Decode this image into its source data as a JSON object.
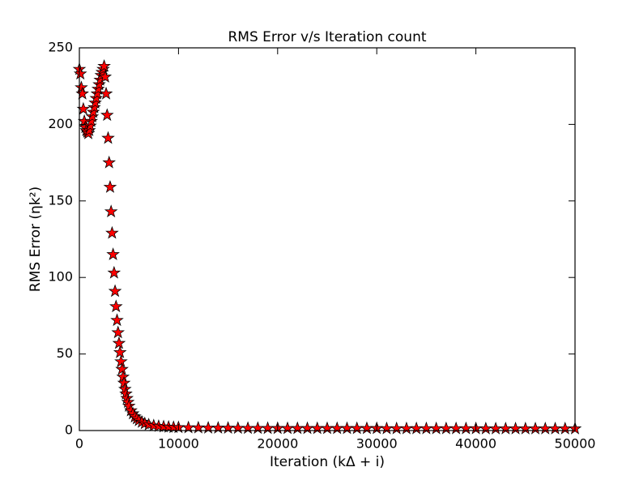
{
  "chart_data": {
    "type": "scatter",
    "title": "RMS Error v/s Iteration count",
    "x_label": "Iteration (kΔ + i)",
    "y_label": "RMS Error (ηk²)",
    "marker": "star",
    "color": "#ff0000",
    "edge_color": "#000000",
    "x": [
      0,
      100,
      200,
      300,
      400,
      500,
      600,
      700,
      800,
      900,
      1000,
      1100,
      1200,
      1300,
      1400,
      1500,
      1600,
      1700,
      1800,
      1900,
      2000,
      2100,
      2200,
      2300,
      2400,
      2500,
      2600,
      2700,
      2800,
      2900,
      3000,
      3100,
      3200,
      3300,
      3400,
      3500,
      3600,
      3700,
      3800,
      3900,
      4000,
      4100,
      4200,
      4300,
      4400,
      4500,
      4600,
      4700,
      4800,
      4900,
      5000,
      5200,
      5400,
      5600,
      5800,
      6000,
      6300,
      6600,
      7000,
      7500,
      8000,
      8500,
      9000,
      9500,
      10000,
      11000,
      12000,
      13000,
      14000,
      15000,
      16000,
      17000,
      18000,
      19000,
      20000,
      21000,
      22000,
      23000,
      24000,
      25000,
      26000,
      27000,
      28000,
      29000,
      30000,
      31000,
      32000,
      33000,
      34000,
      35000,
      36000,
      37000,
      38000,
      39000,
      40000,
      41000,
      42000,
      43000,
      44000,
      45000,
      46000,
      47000,
      48000,
      49000,
      50000
    ],
    "values": [
      236,
      233,
      224,
      220,
      210,
      202,
      198,
      196,
      195,
      194,
      196,
      199,
      202,
      205,
      208,
      211,
      214,
      217,
      220,
      223,
      226,
      229,
      232,
      234,
      236,
      238,
      231,
      220,
      206,
      191,
      175,
      159,
      143,
      129,
      115,
      103,
      91,
      81,
      72,
      64,
      57,
      51,
      45,
      40,
      35,
      31,
      27,
      24,
      21,
      18.5,
      16,
      13,
      11,
      9,
      7.8,
      6.6,
      5.5,
      4.6,
      3.8,
      3.2,
      2.8,
      2.5,
      2.3,
      2.1,
      2.0,
      1.9,
      1.8,
      1.7,
      1.65,
      1.6,
      1.55,
      1.5,
      1.5,
      1.45,
      1.45,
      1.4,
      1.4,
      1.4,
      1.4,
      1.4,
      1.4,
      1.4,
      1.4,
      1.4,
      1.4,
      1.3,
      1.3,
      1.3,
      1.3,
      1.3,
      1.3,
      1.3,
      1.3,
      1.3,
      1.3,
      1.2,
      1.2,
      1.2,
      1.2,
      1.2,
      1.2,
      1.2,
      1.2,
      1.2,
      1.2
    ],
    "xlim": [
      0,
      50000
    ],
    "xticks": [
      0,
      10000,
      20000,
      30000,
      40000,
      50000
    ],
    "ylim": [
      0,
      250
    ],
    "yticks": [
      0,
      50,
      100,
      150,
      200,
      250
    ],
    "grid": false
  }
}
